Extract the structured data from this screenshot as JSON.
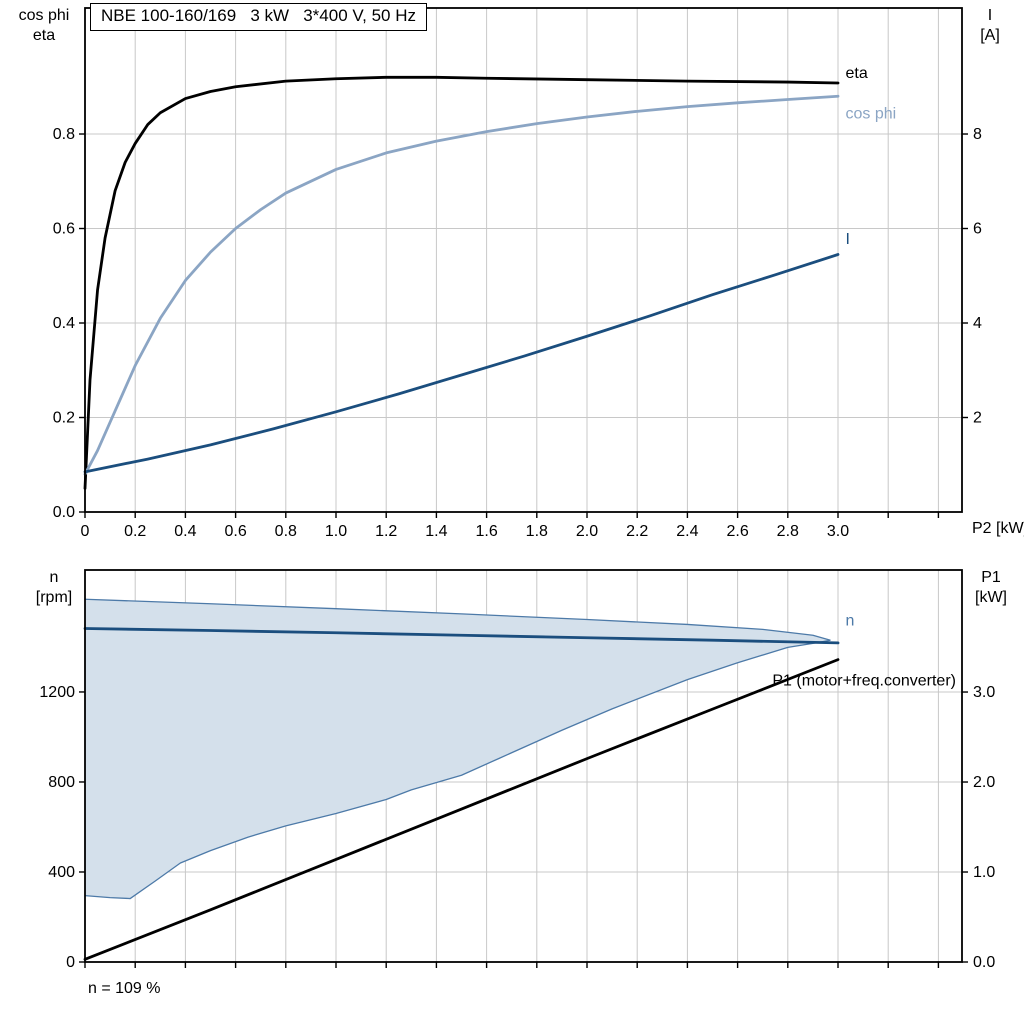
{
  "colors": {
    "background": "#ffffff",
    "grid": "#c8c8c8",
    "frame": "#000000",
    "eta": "#000000",
    "cos_phi": "#8ba5c4",
    "current_blue": "#1b4e7e",
    "area_fill": "#d4e0eb",
    "area_stroke": "#4d7aa8"
  },
  "footnote": "n = 109 %",
  "axis_titles": {
    "top_left": [
      "cos phi",
      "eta"
    ],
    "top_right": [
      "I",
      "[A]"
    ],
    "top_x": "P2 [kW]",
    "bottom_left": [
      "n",
      "[rpm]"
    ],
    "bottom_right": [
      "P1",
      "[kW]"
    ]
  },
  "chart_data": [
    {
      "type": "line",
      "title": "NBE 100-160/169   3 kW   3*400 V, 50 Hz",
      "xlabel": "P2 [kW]",
      "ylabel_left": "cos phi / eta",
      "ylabel_right": "I [A]",
      "grid": true,
      "xlim": [
        0,
        3.494
      ],
      "ylim_left": [
        0,
        1.0667
      ],
      "ylim_right": [
        0,
        10.667
      ],
      "x_ticks": {
        "values": [
          0,
          0.2,
          0.4,
          0.6,
          0.8,
          1.0,
          1.2,
          1.4,
          1.6,
          1.8,
          2.0,
          2.2,
          2.4,
          2.6,
          2.8,
          3.0,
          3.2,
          3.4
        ],
        "labels": [
          "0",
          "0.2",
          "0.4",
          "0.6",
          "0.8",
          "1.0",
          "1.2",
          "1.4",
          "1.6",
          "1.8",
          "2.0",
          "2.2",
          "2.4",
          "2.6",
          "2.8",
          "3.0",
          "",
          ""
        ]
      },
      "y_ticks_left": {
        "values": [
          0,
          0.2,
          0.4,
          0.6,
          0.8
        ],
        "labels": [
          "0.0",
          "0.2",
          "0.4",
          "0.6",
          "0.8"
        ]
      },
      "y_ticks_right": {
        "values": [
          2,
          4,
          6,
          8
        ],
        "labels": [
          "2",
          "4",
          "6",
          "8"
        ]
      },
      "series": [
        {
          "name": "eta",
          "axis": "left",
          "color": "#000000",
          "width": 2.8,
          "x": [
            0,
            0.02,
            0.05,
            0.08,
            0.12,
            0.16,
            0.2,
            0.25,
            0.3,
            0.4,
            0.5,
            0.6,
            0.8,
            1.0,
            1.2,
            1.4,
            1.6,
            2.0,
            2.4,
            2.8,
            3.0
          ],
          "y": [
            0.05,
            0.28,
            0.47,
            0.58,
            0.68,
            0.74,
            0.78,
            0.82,
            0.845,
            0.875,
            0.89,
            0.9,
            0.912,
            0.917,
            0.92,
            0.92,
            0.918,
            0.915,
            0.912,
            0.91,
            0.908
          ],
          "label": {
            "x": 3.03,
            "y": 0.928,
            "anchor": "start",
            "color": "#000000"
          }
        },
        {
          "name": "cos phi",
          "axis": "left",
          "color": "#8ba5c4",
          "width": 2.8,
          "x": [
            0,
            0.05,
            0.1,
            0.15,
            0.2,
            0.3,
            0.4,
            0.5,
            0.6,
            0.7,
            0.8,
            1.0,
            1.2,
            1.4,
            1.6,
            1.8,
            2.0,
            2.2,
            2.4,
            2.6,
            2.8,
            3.0
          ],
          "y": [
            0.08,
            0.13,
            0.19,
            0.25,
            0.31,
            0.41,
            0.49,
            0.55,
            0.6,
            0.64,
            0.675,
            0.725,
            0.76,
            0.785,
            0.805,
            0.822,
            0.836,
            0.848,
            0.858,
            0.866,
            0.873,
            0.88
          ],
          "label": {
            "x": 3.03,
            "y": 0.842,
            "anchor": "start",
            "color": "#8ba5c4"
          }
        },
        {
          "name": "I",
          "axis": "right",
          "color": "#1b4e7e",
          "width": 2.8,
          "x": [
            0,
            0.25,
            0.5,
            0.75,
            1.0,
            1.25,
            1.5,
            1.75,
            2.0,
            2.25,
            2.5,
            2.75,
            3.0
          ],
          "y": [
            0.85,
            1.12,
            1.42,
            1.76,
            2.12,
            2.5,
            2.9,
            3.3,
            3.72,
            4.15,
            4.6,
            5.02,
            5.45
          ],
          "label": {
            "x": 3.03,
            "y": 5.76,
            "anchor": "start",
            "color": "#1b4e7e"
          }
        }
      ]
    },
    {
      "type": "line+area",
      "title": "",
      "xlabel": "",
      "ylabel_left": "n [rpm]",
      "ylabel_right": "P1 [kW]",
      "grid": true,
      "annotation": "n = 109 %",
      "xlim": [
        0,
        3.494
      ],
      "ylim_left": [
        0,
        1742
      ],
      "ylim_right": [
        0,
        4.356
      ],
      "x_ticks": {
        "values": [
          0,
          0.2,
          0.4,
          0.6,
          0.8,
          1.0,
          1.2,
          1.4,
          1.6,
          1.8,
          2.0,
          2.2,
          2.4,
          2.6,
          2.8,
          3.0,
          3.2,
          3.4
        ],
        "labels": [
          "",
          "",
          "",
          "",
          "",
          "",
          "",
          "",
          "",
          "",
          "",
          "",
          "",
          "",
          "",
          "",
          "",
          ""
        ]
      },
      "y_ticks_left": {
        "values": [
          0,
          400,
          800,
          1200
        ],
        "labels": [
          "0",
          "400",
          "800",
          "1200"
        ]
      },
      "y_ticks_right": {
        "values": [
          0,
          1,
          2,
          3
        ],
        "labels": [
          "0.0",
          "1.0",
          "2.0",
          "3.0"
        ]
      },
      "area": {
        "name": "speed-operating-range",
        "fill": "#d4e0eb",
        "stroke": "#4d7aa8",
        "upper": {
          "x": [
            0,
            0.5,
            1.0,
            1.5,
            2.0,
            2.4,
            2.7,
            2.9,
            2.97
          ],
          "y": [
            1612,
            1592,
            1570,
            1547,
            1522,
            1500,
            1478,
            1452,
            1430
          ]
        },
        "lower": {
          "x": [
            0,
            0.1,
            0.18,
            0.28,
            0.38,
            0.5,
            0.65,
            0.8,
            1.0,
            1.2,
            1.3,
            1.5,
            1.65,
            1.9,
            2.1,
            2.4,
            2.6,
            2.8,
            2.9,
            2.97
          ],
          "y": [
            295,
            286,
            282,
            360,
            440,
            495,
            555,
            605,
            660,
            722,
            765,
            830,
            905,
            1030,
            1125,
            1255,
            1330,
            1398,
            1416,
            1430
          ]
        }
      },
      "series": [
        {
          "name": "n",
          "axis": "left",
          "color": "#1b4e7e",
          "width": 2.8,
          "x": [
            0,
            0.5,
            1.0,
            1.5,
            2.0,
            2.5,
            3.0
          ],
          "y": [
            1482,
            1473,
            1463,
            1452,
            1441,
            1430,
            1418
          ],
          "label": {
            "x": 3.03,
            "y": 1515,
            "anchor": "start",
            "color": "#4d7aa8"
          }
        },
        {
          "name": "P1 (motor+freq.converter)",
          "axis": "right",
          "color": "#000000",
          "width": 2.8,
          "x": [
            0,
            0.5,
            1.0,
            1.5,
            2.0,
            2.5,
            3.0
          ],
          "y": [
            0.03,
            0.58,
            1.14,
            1.7,
            2.26,
            2.81,
            3.36
          ],
          "label": {
            "x": 3.47,
            "y": 3.12,
            "anchor": "end",
            "color": "#000000"
          }
        }
      ]
    }
  ]
}
